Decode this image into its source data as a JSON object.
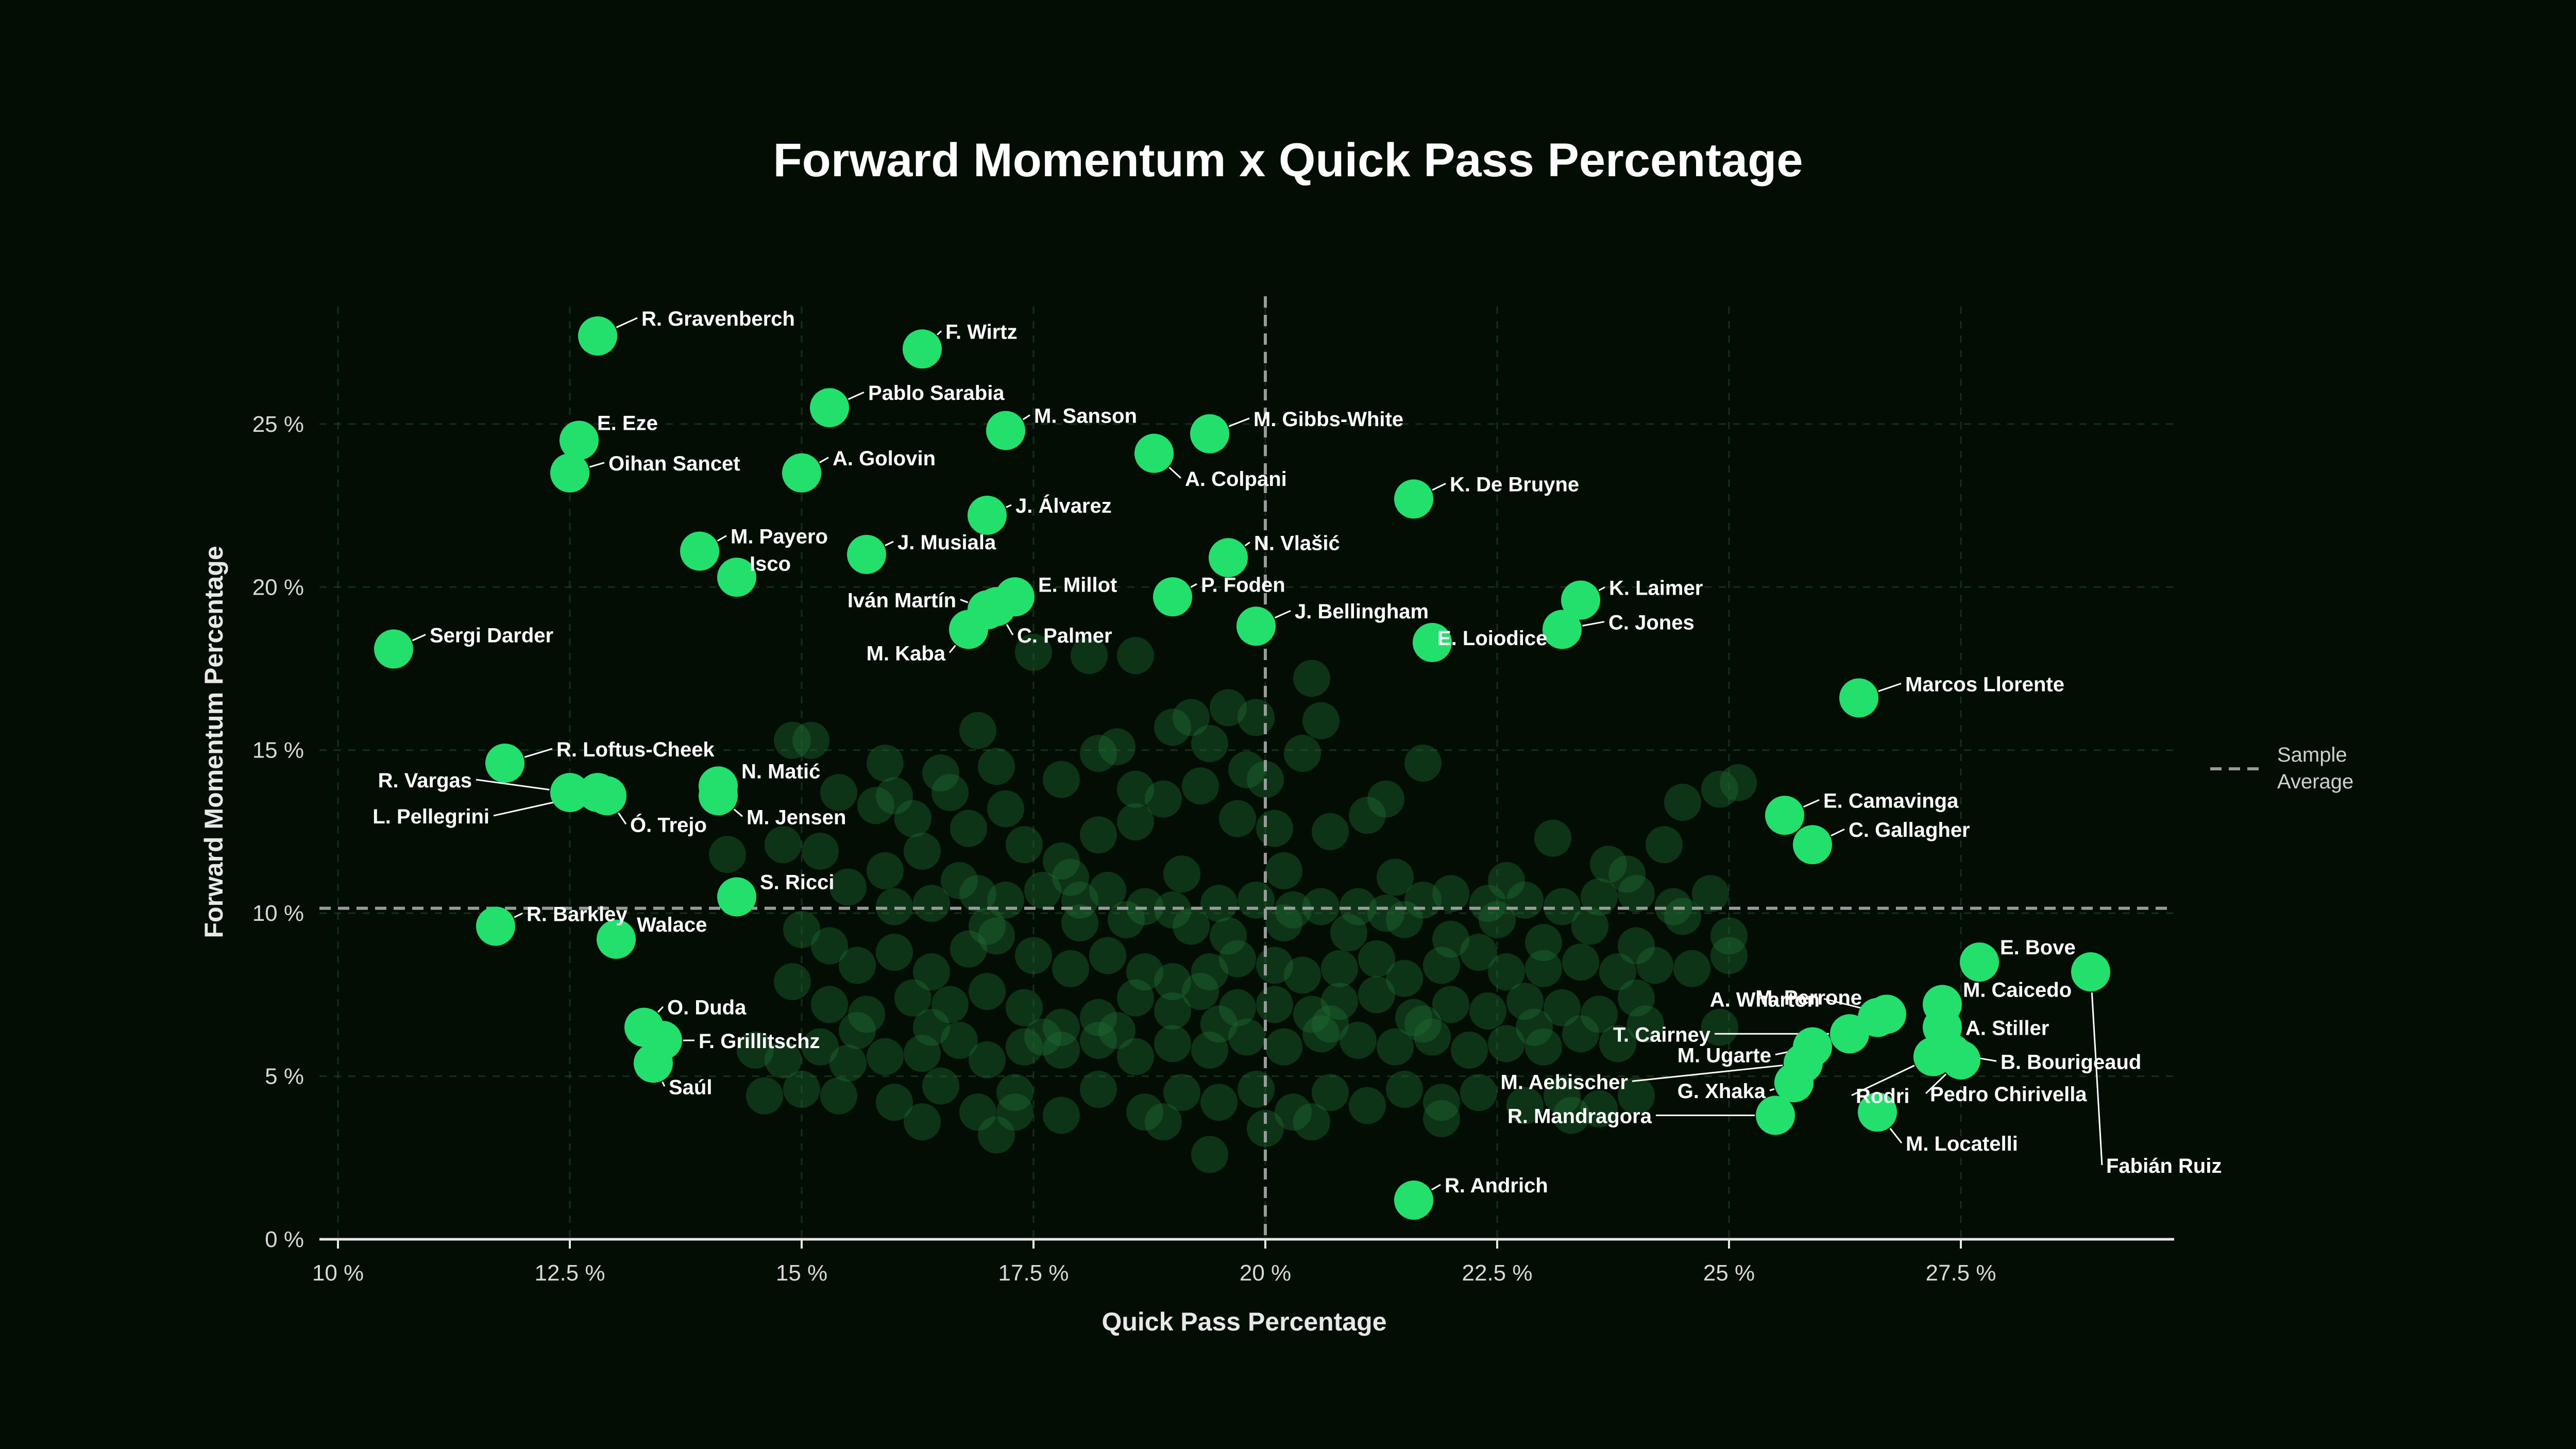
{
  "chart_data": {
    "type": "scatter",
    "title": "Forward Momentum x Quick Pass Percentage",
    "xlabel": "Quick Pass Percentage",
    "ylabel": "Forward Momentum Percentage",
    "xlim": [
      9.8,
      29.8
    ],
    "ylim": [
      0,
      28.6
    ],
    "x_ticks": [
      10,
      12.5,
      15,
      17.5,
      20,
      22.5,
      25,
      27.5
    ],
    "x_tick_labels": [
      "10 %",
      "12.5 %",
      "15 %",
      "17.5 %",
      "20 %",
      "22.5 %",
      "25 %",
      "27.5 %"
    ],
    "y_ticks": [
      0,
      5,
      10,
      15,
      20,
      25
    ],
    "y_tick_labels": [
      "0 %",
      "5 %",
      "10 %",
      "15 %",
      "20 %",
      "25 %"
    ],
    "grid": true,
    "reference_lines": {
      "x": 20.0,
      "y": 10.15
    },
    "legend": {
      "label": "Sample\nAverage",
      "placement": "right"
    },
    "colors": {
      "background": "#020d04",
      "highlight": "#22e06c",
      "sample": "#1f6b33",
      "grid": "#2a4a2e",
      "reference": "#9a9a9a"
    },
    "highlighted": [
      {
        "name": "R. Gravenberch",
        "x": 12.8,
        "y": 27.7
      },
      {
        "name": "F. Wirtz",
        "x": 16.3,
        "y": 27.3
      },
      {
        "name": "Pablo Sarabia",
        "x": 15.3,
        "y": 25.5
      },
      {
        "name": "E. Eze",
        "x": 12.6,
        "y": 24.5
      },
      {
        "name": "M. Sanson",
        "x": 17.2,
        "y": 24.8
      },
      {
        "name": "M. Gibbs-White",
        "x": 19.4,
        "y": 24.7
      },
      {
        "name": "A. Colpani",
        "x": 18.8,
        "y": 24.1
      },
      {
        "name": "Oihan Sancet",
        "x": 12.5,
        "y": 23.5
      },
      {
        "name": "A. Golovin",
        "x": 15.0,
        "y": 23.5
      },
      {
        "name": "K. De Bruyne",
        "x": 21.6,
        "y": 22.7
      },
      {
        "name": "J. Álvarez",
        "x": 17.0,
        "y": 22.2
      },
      {
        "name": "M. Payero",
        "x": 13.9,
        "y": 21.1
      },
      {
        "name": "J. Musiala",
        "x": 15.7,
        "y": 21.0
      },
      {
        "name": "N. Vlašić",
        "x": 19.6,
        "y": 20.9
      },
      {
        "name": "Isco",
        "x": 14.3,
        "y": 20.3
      },
      {
        "name": "E. Millot",
        "x": 17.3,
        "y": 19.7
      },
      {
        "name": "P. Foden",
        "x": 19.0,
        "y": 19.7
      },
      {
        "name": "K. Laimer",
        "x": 23.4,
        "y": 19.6
      },
      {
        "name": "Iván Martín",
        "x": 17.0,
        "y": 19.3
      },
      {
        "name": "C. Palmer",
        "x": 17.1,
        "y": 19.4
      },
      {
        "name": "J. Bellingham",
        "x": 19.9,
        "y": 18.8
      },
      {
        "name": "C. Jones",
        "x": 23.2,
        "y": 18.7
      },
      {
        "name": "M. Kaba",
        "x": 16.8,
        "y": 18.7
      },
      {
        "name": "E. Loiodice",
        "x": 21.8,
        "y": 18.3
      },
      {
        "name": "Sergi Darder",
        "x": 10.6,
        "y": 18.1
      },
      {
        "name": "Marcos Llorente",
        "x": 26.4,
        "y": 16.6
      },
      {
        "name": "R. Loftus-Cheek",
        "x": 11.8,
        "y": 14.6
      },
      {
        "name": "N. Matić",
        "x": 14.1,
        "y": 13.9
      },
      {
        "name": "R. Vargas",
        "x": 12.5,
        "y": 13.7
      },
      {
        "name": "L. Pellegrini",
        "x": 12.8,
        "y": 13.7
      },
      {
        "name": "M. Jensen",
        "x": 14.1,
        "y": 13.6
      },
      {
        "name": "Ó. Trejo",
        "x": 12.9,
        "y": 13.6
      },
      {
        "name": "E. Camavinga",
        "x": 25.6,
        "y": 13.0
      },
      {
        "name": "C. Gallagher",
        "x": 25.9,
        "y": 12.1
      },
      {
        "name": "S. Ricci",
        "x": 14.3,
        "y": 10.5
      },
      {
        "name": "R. Barkley",
        "x": 11.7,
        "y": 9.6
      },
      {
        "name": "Walace",
        "x": 13.0,
        "y": 9.2
      },
      {
        "name": "E. Bove",
        "x": 27.7,
        "y": 8.5
      },
      {
        "name": "Fabián Ruiz",
        "x": 28.9,
        "y": 8.2
      },
      {
        "name": "M. Caicedo",
        "x": 27.3,
        "y": 7.2
      },
      {
        "name": "A. Wharton",
        "x": 26.7,
        "y": 6.9
      },
      {
        "name": "M. Perrone",
        "x": 26.6,
        "y": 6.8
      },
      {
        "name": "A. Stiller",
        "x": 27.3,
        "y": 6.5
      },
      {
        "name": "T. Cairney",
        "x": 26.3,
        "y": 6.3
      },
      {
        "name": "O. Duda",
        "x": 13.3,
        "y": 6.5
      },
      {
        "name": "F. Grillitschz",
        "x": 13.5,
        "y": 6.1
      },
      {
        "name": "M. Ugarte",
        "x": 25.9,
        "y": 5.9
      },
      {
        "name": "B. Bourigeaud",
        "x": 27.4,
        "y": 5.7
      },
      {
        "name": "Rodri",
        "x": 27.2,
        "y": 5.6
      },
      {
        "name": "M. Aebischer",
        "x": 25.8,
        "y": 5.4
      },
      {
        "name": "Pedro Chirivella",
        "x": 27.5,
        "y": 5.5
      },
      {
        "name": "Saúl",
        "x": 13.4,
        "y": 5.4
      },
      {
        "name": "G. Xhaka",
        "x": 25.7,
        "y": 4.8
      },
      {
        "name": "M. Locatelli",
        "x": 26.6,
        "y": 3.9
      },
      {
        "name": "R. Mandragora",
        "x": 25.5,
        "y": 3.8
      },
      {
        "name": "R. Andrich",
        "x": 21.6,
        "y": 1.2
      }
    ],
    "sample": [
      [
        14.9,
        15.3
      ],
      [
        15.1,
        15.3
      ],
      [
        16.5,
        14.3
      ],
      [
        16.9,
        15.6
      ],
      [
        17.1,
        14.5
      ],
      [
        17.5,
        18.0
      ],
      [
        17.8,
        14.1
      ],
      [
        18.1,
        17.9
      ],
      [
        18.4,
        15.1
      ],
      [
        18.6,
        17.9
      ],
      [
        18.2,
        14.9
      ],
      [
        19.0,
        15.7
      ],
      [
        19.2,
        16.0
      ],
      [
        19.4,
        15.2
      ],
      [
        19.6,
        16.3
      ],
      [
        19.9,
        16.0
      ],
      [
        20.5,
        17.2
      ],
      [
        20.6,
        15.9
      ],
      [
        19.8,
        14.4
      ],
      [
        20.0,
        14.1
      ],
      [
        15.8,
        13.3
      ],
      [
        16.0,
        13.6
      ],
      [
        16.2,
        12.9
      ],
      [
        16.6,
        13.7
      ],
      [
        14.8,
        12.1
      ],
      [
        15.2,
        11.9
      ],
      [
        15.9,
        11.3
      ],
      [
        16.3,
        11.9
      ],
      [
        16.8,
        12.6
      ],
      [
        17.4,
        12.1
      ],
      [
        17.8,
        11.6
      ],
      [
        18.2,
        12.4
      ],
      [
        18.6,
        12.8
      ],
      [
        18.9,
        13.5
      ],
      [
        19.3,
        13.9
      ],
      [
        19.7,
        12.9
      ],
      [
        20.1,
        12.6
      ],
      [
        20.7,
        12.5
      ],
      [
        21.1,
        13.0
      ],
      [
        21.3,
        13.5
      ],
      [
        23.1,
        12.3
      ],
      [
        23.7,
        11.5
      ],
      [
        24.3,
        12.1
      ],
      [
        24.9,
        13.8
      ],
      [
        25.1,
        14.0
      ],
      [
        16.0,
        10.2
      ],
      [
        16.4,
        10.3
      ],
      [
        16.9,
        10.6
      ],
      [
        17.2,
        10.4
      ],
      [
        17.6,
        10.7
      ],
      [
        18.0,
        10.4
      ],
      [
        18.3,
        10.7
      ],
      [
        18.7,
        10.2
      ],
      [
        19.0,
        10.1
      ],
      [
        19.5,
        10.3
      ],
      [
        19.9,
        10.4
      ],
      [
        20.3,
        10.1
      ],
      [
        20.6,
        10.2
      ],
      [
        21.0,
        10.2
      ],
      [
        21.3,
        10.0
      ],
      [
        21.7,
        10.4
      ],
      [
        22.0,
        10.6
      ],
      [
        22.4,
        10.3
      ],
      [
        22.8,
        10.4
      ],
      [
        23.2,
        10.2
      ],
      [
        23.6,
        10.5
      ],
      [
        24.0,
        10.6
      ],
      [
        24.4,
        10.2
      ],
      [
        24.8,
        10.6
      ],
      [
        15.3,
        9.0
      ],
      [
        15.6,
        8.4
      ],
      [
        16.0,
        8.8
      ],
      [
        16.4,
        8.2
      ],
      [
        16.8,
        8.9
      ],
      [
        17.1,
        9.3
      ],
      [
        17.5,
        8.7
      ],
      [
        17.9,
        8.3
      ],
      [
        18.3,
        8.7
      ],
      [
        18.7,
        8.2
      ],
      [
        19.0,
        7.9
      ],
      [
        19.4,
        8.2
      ],
      [
        19.7,
        8.6
      ],
      [
        20.1,
        8.4
      ],
      [
        20.4,
        8.1
      ],
      [
        20.8,
        8.3
      ],
      [
        21.2,
        8.6
      ],
      [
        21.5,
        8.0
      ],
      [
        21.9,
        8.4
      ],
      [
        22.3,
        8.8
      ],
      [
        22.6,
        8.2
      ],
      [
        23.0,
        8.3
      ],
      [
        23.4,
        8.5
      ],
      [
        23.8,
        8.2
      ],
      [
        24.2,
        8.4
      ],
      [
        24.6,
        8.3
      ],
      [
        25.0,
        8.7
      ],
      [
        14.9,
        7.9
      ],
      [
        15.3,
        7.2
      ],
      [
        15.7,
        6.9
      ],
      [
        16.2,
        7.4
      ],
      [
        16.6,
        7.2
      ],
      [
        17.0,
        7.6
      ],
      [
        17.4,
        7.1
      ],
      [
        17.8,
        6.5
      ],
      [
        18.2,
        6.8
      ],
      [
        18.6,
        7.4
      ],
      [
        19.0,
        7.0
      ],
      [
        19.3,
        7.6
      ],
      [
        19.7,
        7.1
      ],
      [
        20.1,
        7.2
      ],
      [
        20.5,
        6.9
      ],
      [
        20.8,
        7.3
      ],
      [
        21.2,
        7.5
      ],
      [
        21.6,
        6.8
      ],
      [
        22.0,
        7.2
      ],
      [
        22.4,
        7.0
      ],
      [
        22.8,
        7.3
      ],
      [
        23.2,
        7.1
      ],
      [
        23.6,
        6.9
      ],
      [
        24.0,
        7.4
      ],
      [
        14.5,
        5.8
      ],
      [
        14.8,
        5.5
      ],
      [
        15.2,
        5.9
      ],
      [
        15.5,
        5.4
      ],
      [
        15.9,
        5.6
      ],
      [
        16.3,
        5.7
      ],
      [
        16.7,
        6.1
      ],
      [
        17.0,
        5.5
      ],
      [
        17.4,
        5.9
      ],
      [
        17.8,
        5.8
      ],
      [
        18.2,
        6.1
      ],
      [
        18.6,
        5.6
      ],
      [
        19.0,
        6.0
      ],
      [
        19.4,
        5.8
      ],
      [
        19.8,
        6.2
      ],
      [
        20.2,
        5.9
      ],
      [
        20.6,
        6.3
      ],
      [
        21.0,
        6.1
      ],
      [
        21.4,
        5.9
      ],
      [
        21.8,
        6.2
      ],
      [
        22.2,
        5.8
      ],
      [
        22.6,
        6.0
      ],
      [
        23.0,
        5.9
      ],
      [
        23.4,
        6.3
      ],
      [
        23.8,
        6.0
      ],
      [
        14.6,
        4.4
      ],
      [
        15.0,
        4.6
      ],
      [
        15.4,
        4.4
      ],
      [
        16.0,
        4.2
      ],
      [
        16.5,
        4.7
      ],
      [
        16.9,
        3.9
      ],
      [
        17.3,
        4.5
      ],
      [
        17.8,
        3.8
      ],
      [
        18.2,
        4.6
      ],
      [
        18.7,
        3.9
      ],
      [
        19.1,
        4.5
      ],
      [
        19.5,
        4.2
      ],
      [
        19.9,
        4.6
      ],
      [
        20.3,
        3.9
      ],
      [
        20.7,
        4.5
      ],
      [
        21.1,
        4.1
      ],
      [
        21.5,
        4.6
      ],
      [
        21.9,
        4.2
      ],
      [
        22.3,
        4.5
      ],
      [
        22.8,
        4.1
      ],
      [
        23.2,
        4.4
      ],
      [
        23.6,
        4.0
      ],
      [
        24.0,
        4.4
      ],
      [
        16.3,
        3.6
      ],
      [
        17.1,
        3.2
      ],
      [
        19.4,
        2.6
      ],
      [
        20.0,
        3.4
      ],
      [
        18.0,
        9.7
      ],
      [
        18.5,
        9.8
      ],
      [
        19.2,
        9.6
      ],
      [
        20.2,
        9.7
      ],
      [
        21.5,
        9.8
      ],
      [
        22.5,
        9.8
      ],
      [
        23.5,
        9.6
      ],
      [
        24.5,
        9.9
      ],
      [
        14.2,
        11.8
      ],
      [
        15.5,
        10.8
      ],
      [
        16.7,
        11.0
      ],
      [
        17.9,
        11.1
      ],
      [
        19.1,
        11.2
      ],
      [
        20.2,
        11.3
      ],
      [
        21.4,
        11.1
      ],
      [
        22.6,
        11.0
      ],
      [
        23.9,
        11.2
      ],
      [
        15.0,
        9.5
      ],
      [
        17.0,
        9.6
      ],
      [
        19.6,
        9.3
      ],
      [
        20.9,
        9.4
      ],
      [
        22.0,
        9.2
      ],
      [
        23.0,
        9.1
      ],
      [
        24.0,
        9.0
      ],
      [
        25.0,
        9.3
      ],
      [
        15.6,
        6.4
      ],
      [
        16.4,
        6.5
      ],
      [
        17.6,
        6.2
      ],
      [
        18.4,
        6.4
      ],
      [
        19.5,
        6.6
      ],
      [
        20.7,
        6.6
      ],
      [
        21.7,
        6.6
      ],
      [
        22.9,
        6.5
      ],
      [
        24.1,
        6.6
      ],
      [
        24.9,
        6.5
      ],
      [
        17.3,
        3.9
      ],
      [
        18.9,
        3.6
      ],
      [
        20.5,
        3.6
      ],
      [
        21.9,
        3.7
      ],
      [
        23.3,
        3.8
      ],
      [
        15.4,
        13.7
      ],
      [
        15.9,
        14.6
      ],
      [
        17.2,
        13.2
      ],
      [
        18.6,
        13.8
      ],
      [
        20.4,
        14.9
      ],
      [
        21.7,
        14.6
      ],
      [
        24.5,
        13.4
      ]
    ]
  }
}
